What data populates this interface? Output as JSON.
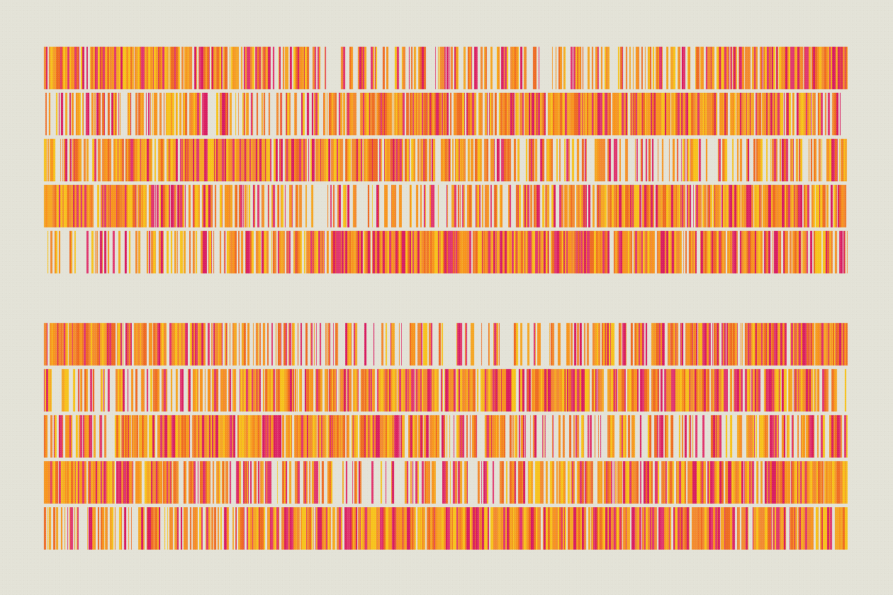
{
  "palette": {
    "background": "#e3e2d7",
    "colors": [
      "#f7941d",
      "#f5a623",
      "#f7c21b",
      "#f28a30",
      "#d81b60",
      "#e0356e",
      "#ee6a22"
    ]
  },
  "groups": [
    {
      "name": "top-group",
      "rows": [
        {
          "density": [
            0.95,
            0.85,
            0.7,
            0.45,
            0.35,
            0.5,
            0.85,
            0.95
          ]
        },
        {
          "density": [
            0.6,
            0.5,
            0.55,
            0.9,
            0.95,
            0.95,
            0.9,
            0.7
          ]
        },
        {
          "density": [
            0.55,
            0.9,
            0.95,
            0.85,
            0.6,
            0.4,
            0.45,
            0.55
          ]
        },
        {
          "density": [
            0.95,
            0.9,
            0.55,
            0.4,
            0.6,
            0.85,
            0.9,
            0.95
          ]
        },
        {
          "density": [
            0.4,
            0.35,
            0.8,
            0.95,
            0.95,
            0.9,
            0.8,
            0.6
          ]
        }
      ]
    },
    {
      "name": "bottom-group",
      "rows": [
        {
          "density": [
            0.95,
            0.9,
            0.55,
            0.4,
            0.45,
            0.7,
            0.9,
            0.98
          ]
        },
        {
          "density": [
            0.5,
            0.45,
            0.8,
            0.95,
            0.95,
            0.9,
            0.9,
            0.6
          ]
        },
        {
          "density": [
            0.55,
            0.9,
            0.95,
            0.9,
            0.5,
            0.4,
            0.45,
            0.6
          ]
        },
        {
          "density": [
            0.95,
            0.85,
            0.55,
            0.35,
            0.6,
            0.85,
            0.9,
            0.95
          ]
        },
        {
          "density": [
            0.5,
            0.4,
            0.85,
            0.95,
            0.95,
            0.9,
            0.85,
            0.7
          ]
        }
      ]
    }
  ]
}
